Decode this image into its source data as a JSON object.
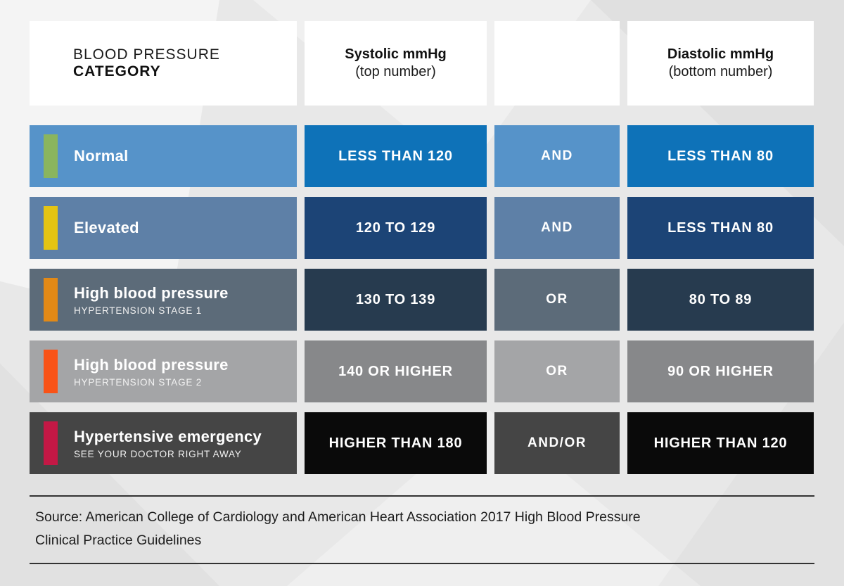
{
  "page": {
    "background_color": "#e8e8e8"
  },
  "header": {
    "category_line1": "BLOOD PRESSURE",
    "category_line2": "CATEGORY",
    "systolic_line1": "Systolic mmHg",
    "systolic_line2": "(top number)",
    "connector_header": "",
    "diastolic_line1": "Diastolic mmHg",
    "diastolic_line2": "(bottom number)"
  },
  "rows": [
    {
      "category": "Normal",
      "subtext": "",
      "systolic": "LESS THAN 120",
      "connector": "AND",
      "diastolic": "LESS THAN 80",
      "colors": {
        "accent": "#8ab55e",
        "category_bg": "#5693c9",
        "connector_bg": "#5693c9",
        "value_bg": "#0e72b8"
      }
    },
    {
      "category": "Elevated",
      "subtext": "",
      "systolic": "120 TO 129",
      "connector": "AND",
      "diastolic": "LESS THAN 80",
      "colors": {
        "accent": "#e4c413",
        "category_bg": "#5e80a7",
        "connector_bg": "#5e80a7",
        "value_bg": "#1c4476"
      }
    },
    {
      "category": "High blood pressure",
      "subtext": "HYPERTENSION STAGE 1",
      "systolic": "130 TO 139",
      "connector": "OR",
      "diastolic": "80 TO 89",
      "colors": {
        "accent": "#e28916",
        "category_bg": "#5c6b79",
        "connector_bg": "#5c6b79",
        "value_bg": "#273b4f"
      }
    },
    {
      "category": "High blood pressure",
      "subtext": "HYPERTENSION STAGE 2",
      "systolic": "140 OR HIGHER",
      "connector": "OR",
      "diastolic": "90 OR HIGHER",
      "colors": {
        "accent": "#f95317",
        "category_bg": "#a4a5a7",
        "connector_bg": "#a4a5a7",
        "value_bg": "#87888a"
      }
    },
    {
      "category": "Hypertensive emergency",
      "subtext": "SEE YOUR DOCTOR RIGHT AWAY",
      "systolic": "HIGHER THAN 180",
      "connector": "AND/OR",
      "diastolic": "HIGHER THAN 120",
      "colors": {
        "accent": "#c31845",
        "category_bg": "#454545",
        "connector_bg": "#454545",
        "value_bg": "#0a0a0a"
      }
    }
  ],
  "source": {
    "line1": "Source: American College of Cardiology and American Heart Association 2017 High Blood Pressure",
    "line2": "Clinical Practice Guidelines"
  },
  "chart_data": {
    "type": "table",
    "title": "Blood Pressure Categories",
    "columns": [
      "BLOOD PRESSURE CATEGORY",
      "Systolic mmHg (top number)",
      "",
      "Diastolic mmHg (bottom number)"
    ],
    "rows": [
      [
        "Normal",
        "LESS THAN 120",
        "AND",
        "LESS THAN 80"
      ],
      [
        "Elevated",
        "120 TO 129",
        "AND",
        "LESS THAN 80"
      ],
      [
        "High blood pressure (HYPERTENSION STAGE 1)",
        "130 TO 139",
        "OR",
        "80 TO 89"
      ],
      [
        "High blood pressure (HYPERTENSION STAGE 2)",
        "140 OR HIGHER",
        "OR",
        "90 OR HIGHER"
      ],
      [
        "Hypertensive emergency (SEE YOUR DOCTOR RIGHT AWAY)",
        "HIGHER THAN 180",
        "AND/OR",
        "HIGHER THAN 120"
      ]
    ],
    "source": "Source: American College of Cardiology and American Heart Association 2017 High Blood Pressure Clinical Practice Guidelines"
  }
}
